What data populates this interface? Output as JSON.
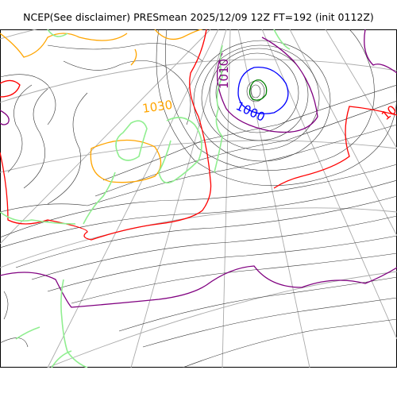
{
  "title": "NCEP(See disclaimer) PRESmean 2025/12/09 12Z FT=192 (init 0112Z)",
  "contour_labels": [
    {
      "text": "1030",
      "color": "#ffa500"
    },
    {
      "text": "1010",
      "color": "#800080"
    },
    {
      "text": "1000",
      "color": "#0000ff"
    },
    {
      "text": "10",
      "color": "#ff0000"
    }
  ],
  "colors": {
    "coastline": "#90ee90",
    "isobar": "#333333",
    "graticule": "#aaaaaa",
    "c1030": "#ffa500",
    "c1020": "#ff0000",
    "c1010": "#800080",
    "c1000": "#0000ff",
    "c990": "#008000"
  }
}
